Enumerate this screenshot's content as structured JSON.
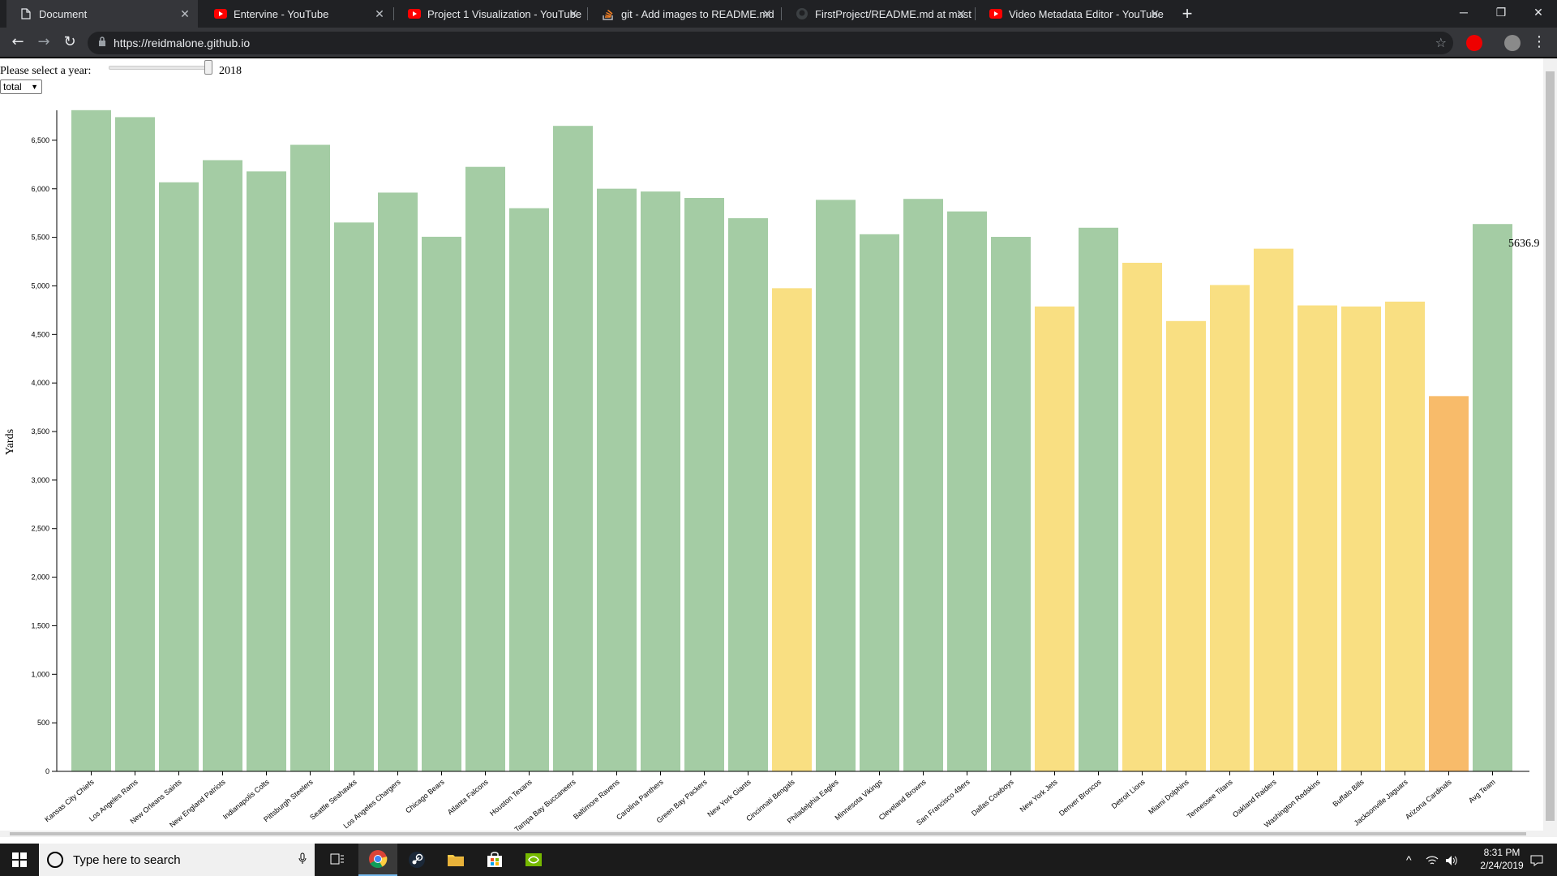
{
  "browser": {
    "tabs": [
      {
        "title": "Document",
        "favicon": "document-icon",
        "active": true
      },
      {
        "title": "Entervine - YouTube",
        "favicon": "youtube-icon",
        "active": false
      },
      {
        "title": "Project 1 Visualization - YouTube",
        "favicon": "youtube-icon",
        "active": false
      },
      {
        "title": "git - Add images to README.md",
        "favicon": "stackoverflow-icon",
        "active": false
      },
      {
        "title": "FirstProject/README.md at mast",
        "favicon": "github-icon",
        "active": false
      },
      {
        "title": "Video Metadata Editor - YouTube",
        "favicon": "youtube-icon",
        "active": false
      }
    ],
    "url": "https://reidmalone.github.io"
  },
  "controls": {
    "year_label": "Please select a year:",
    "year_value": "2018",
    "select_value": "total"
  },
  "chart_data": {
    "type": "bar",
    "ylabel": "Yards",
    "ylim": [
      0,
      6800
    ],
    "yticks": [
      0,
      500,
      1000,
      1500,
      2000,
      2500,
      3000,
      3500,
      4000,
      4500,
      5000,
      5500,
      6000,
      6500
    ],
    "ytick_labels": [
      "0",
      "500",
      "1,000",
      "1,500",
      "2,000",
      "2,500",
      "3,000",
      "3,500",
      "4,000",
      "4,500",
      "5,000",
      "5,500",
      "6,000",
      "6,500"
    ],
    "categories": [
      "Kansas City Chiefs",
      "Los Angeles Rams",
      "New Orleans Saints",
      "New England Patriots",
      "Indianapolis Colts",
      "Pittsburgh Steelers",
      "Seattle Seahawks",
      "Los Angeles Chargers",
      "Chicago Bears",
      "Atlanta Falcons",
      "Houston Texans",
      "Tampa Bay Buccaneers",
      "Baltimore Ravens",
      "Carolina Panthers",
      "Green Bay Packers",
      "New York Giants",
      "Cincinnati Bengals",
      "Philadelphia Eagles",
      "Minnesota Vikings",
      "Cleveland Browns",
      "San Francisco 49ers",
      "Dallas Cowboys",
      "New York Jets",
      "Denver Broncos",
      "Detroit Lions",
      "Miami Dolphins",
      "Tennessee Titans",
      "Oakland Raiders",
      "Washington Redskins",
      "Buffalo Bills",
      "Jacksonville Jaguars",
      "Arizona Cardinals",
      "Avg Team"
    ],
    "values": [
      6810,
      6738,
      6067,
      6295,
      6179,
      6453,
      5653,
      5961,
      5506,
      6226,
      5800,
      6648,
      6001,
      5972,
      5906,
      5697,
      4976,
      5886,
      5532,
      5896,
      5767,
      5505,
      4788,
      5599,
      5238,
      4638,
      5009,
      5383,
      4799,
      4788,
      4838,
      3865,
      5637
    ],
    "bar_colors": [
      "#a4cca4",
      "#a4cca4",
      "#a4cca4",
      "#a4cca4",
      "#a4cca4",
      "#a4cca4",
      "#a4cca4",
      "#a4cca4",
      "#a4cca4",
      "#a4cca4",
      "#a4cca4",
      "#a4cca4",
      "#a4cca4",
      "#a4cca4",
      "#a4cca4",
      "#a4cca4",
      "#f9df82",
      "#a4cca4",
      "#a4cca4",
      "#a4cca4",
      "#a4cca4",
      "#a4cca4",
      "#f9df82",
      "#a4cca4",
      "#f9df82",
      "#f9df82",
      "#f9df82",
      "#f9df82",
      "#f9df82",
      "#f9df82",
      "#f9df82",
      "#f8bb6a",
      "#a4cca4"
    ],
    "annotation": "5636.9"
  },
  "taskbar": {
    "search_placeholder": "Type here to search",
    "time": "8:31 PM",
    "date": "2/24/2019"
  }
}
